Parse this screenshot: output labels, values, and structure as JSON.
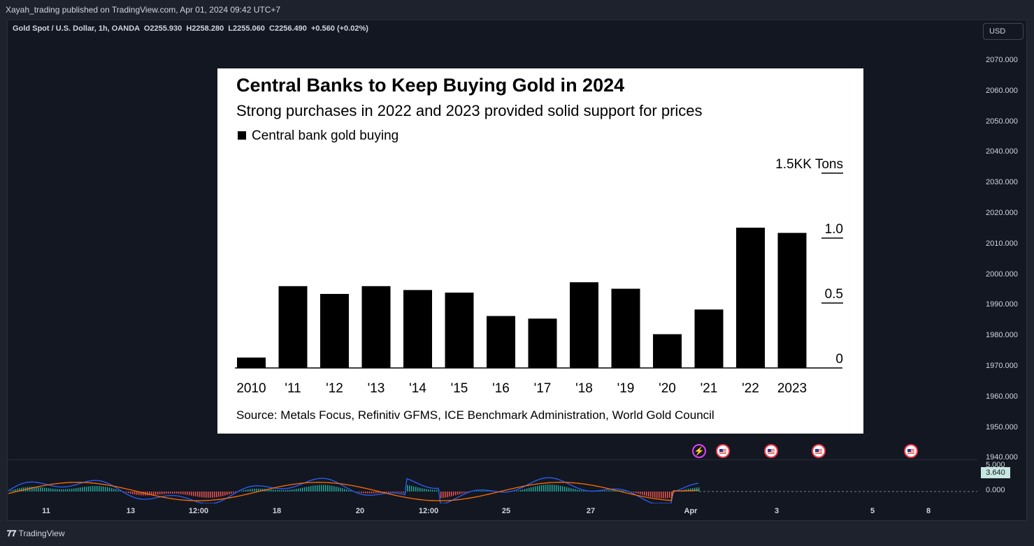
{
  "publisher_line": "Xayah_trading published on TradingView.com, Apr 01, 2024 09:42 UTC+7",
  "symbol_legend": "Gold Spot / U.S. Dollar, 1h, OANDA  O2255.930  H2258.280  L2255.060  C2256.490  +0.560 (+0.02%)",
  "currency_button": "USD",
  "price_axis": [
    "2070.000",
    "2060.000",
    "2050.000",
    "2040.000",
    "2030.000",
    "2020.000",
    "2010.000",
    "2000.000",
    "1990.000",
    "1980.000",
    "1970.000",
    "1960.000",
    "1950.000",
    "1940.000"
  ],
  "oscillator_axis": [
    "5.000",
    "0.000"
  ],
  "oscillator_value": "3.640",
  "time_axis": [
    "11",
    "13",
    "12:00",
    "18",
    "20",
    "12:00",
    "25",
    "27",
    "Apr",
    "3",
    "5",
    "8"
  ],
  "branding": "TradingView",
  "colors": {
    "background": "#131722",
    "bullish": "#26a69a",
    "bearish": "#ef5350",
    "macd": "#2962ff",
    "signal": "#ff6d00"
  },
  "chart_data": {
    "type": "bar",
    "title": "Central Banks to Keep Buying Gold in 2024",
    "subtitle": "Strong purchases in 2022 and 2023 provided solid support for prices",
    "legend": [
      "Central bank gold buying"
    ],
    "categories": [
      "2010",
      "'11",
      "'12",
      "'13",
      "'14",
      "'15",
      "'16",
      "'17",
      "'18",
      "'19",
      "'20",
      "'21",
      "'22",
      "2023"
    ],
    "values": [
      0.08,
      0.63,
      0.57,
      0.63,
      0.6,
      0.58,
      0.4,
      0.38,
      0.66,
      0.61,
      0.26,
      0.45,
      1.08,
      1.04
    ],
    "yticks": [
      "0",
      "0.5",
      "1.0",
      "1.5KK Tons"
    ],
    "ylim": [
      0,
      1.5
    ],
    "source": "Source: Metals Focus, Refinitiv GFMS, ICE Benchmark Administration, World Gold Council"
  }
}
